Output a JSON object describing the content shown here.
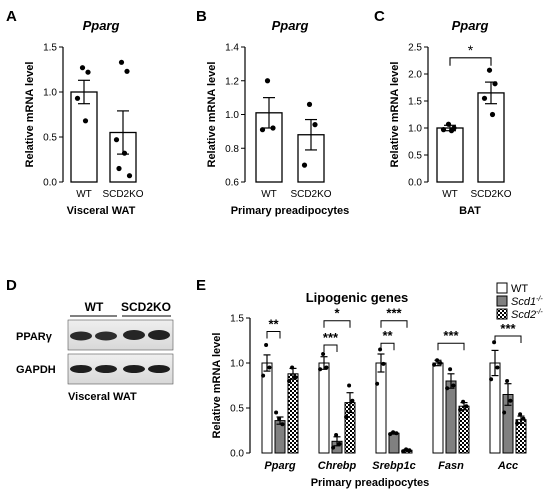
{
  "panel_letters": [
    "A",
    "B",
    "C",
    "D",
    "E"
  ],
  "chart_data": [
    {
      "panel": "A",
      "type": "bar",
      "title": "Pparg",
      "ylabel": "Relative mRNA level",
      "xlabel": "Visceral WAT",
      "ylim": [
        0,
        1.5
      ],
      "yticks": [
        0.0,
        0.5,
        1.0,
        1.5
      ],
      "ytick_labels": [
        "0.0",
        "0.5",
        "1.0",
        "1.5"
      ],
      "categories": [
        "WT",
        "SCD2KO"
      ],
      "values": [
        1.0,
        0.55
      ],
      "errors": [
        0.13,
        0.24
      ],
      "points": [
        [
          1.27,
          1.22,
          0.93,
          0.68
        ],
        [
          1.33,
          1.23,
          0.47,
          0.32,
          0.15,
          0.07
        ]
      ],
      "significance": []
    },
    {
      "panel": "B",
      "type": "bar",
      "title": "Pparg",
      "ylabel": "Relative mRNA level",
      "xlabel": "Primary preadipocytes",
      "ylim": [
        0.6,
        1.4
      ],
      "yticks": [
        0.6,
        0.8,
        1.0,
        1.2,
        1.4
      ],
      "ytick_labels": [
        "0.6",
        "0.8",
        "1.0",
        "1.2",
        "1.4"
      ],
      "categories": [
        "WT",
        "SCD2KO"
      ],
      "values": [
        1.01,
        0.88
      ],
      "errors": [
        0.09,
        0.09
      ],
      "points": [
        [
          1.2,
          0.92,
          0.91
        ],
        [
          1.06,
          0.94,
          0.7
        ]
      ],
      "significance": []
    },
    {
      "panel": "C",
      "type": "bar",
      "title": "Pparg",
      "ylabel": "Relative mRNA level",
      "xlabel": "BAT",
      "ylim": [
        0,
        2.5
      ],
      "yticks": [
        0.0,
        0.5,
        1.0,
        1.5,
        2.0,
        2.5
      ],
      "ytick_labels": [
        "0.0",
        "0.5",
        "1.0",
        "1.5",
        "2.0",
        "2.5"
      ],
      "categories": [
        "WT",
        "SCD2KO"
      ],
      "values": [
        1.0,
        1.65
      ],
      "errors": [
        0.05,
        0.2
      ],
      "points": [
        [
          1.07,
          1.0,
          0.97,
          0.95
        ],
        [
          2.07,
          1.82,
          1.55,
          1.25
        ]
      ],
      "significance": [
        {
          "from": 0,
          "to": 1,
          "y": 2.3,
          "label": "*"
        }
      ]
    },
    {
      "panel": "E",
      "type": "bar",
      "title": "Lipogenic genes",
      "ylabel": "Relative mRNA level",
      "xlabel": "Primary preadipocytes",
      "ylim": [
        0,
        1.5
      ],
      "yticks": [
        0.0,
        0.5,
        1.0,
        1.5
      ],
      "ytick_labels": [
        "0.0",
        "0.5",
        "1.0",
        "1.5"
      ],
      "categories": [
        "Pparg",
        "Chrebp",
        "Srebp1c",
        "Fasn",
        "Acc"
      ],
      "series": [
        {
          "name": "WT",
          "values": [
            1.0,
            1.0,
            1.0,
            1.0,
            1.0
          ],
          "errors": [
            0.09,
            0.07,
            0.1,
            0.03,
            0.14
          ]
        },
        {
          "name": "Scd1",
          "values": [
            0.36,
            0.13,
            0.22,
            0.8,
            0.65
          ],
          "errors": [
            0.04,
            0.05,
            0.01,
            0.08,
            0.12
          ]
        },
        {
          "name": "Scd2",
          "values": [
            0.88,
            0.56,
            0.03,
            0.52,
            0.37
          ],
          "errors": [
            0.06,
            0.11,
            0.01,
            0.04,
            0.04
          ]
        }
      ],
      "points": [
        [
          [
            1.2,
            0.95,
            0.86
          ],
          [
            0.38,
            0.32,
            0.45
          ],
          [
            0.95,
            0.84,
            0.8
          ]
        ],
        [
          [
            1.1,
            0.95,
            0.93
          ],
          [
            0.2,
            0.1,
            0.06
          ],
          [
            0.75,
            0.58,
            0.4
          ]
        ],
        [
          [
            1.15,
            0.99,
            0.77
          ],
          [
            0.23,
            0.22,
            0.21
          ],
          [
            0.04,
            0.03,
            0.02
          ]
        ],
        [
          [
            1.03,
            1.0,
            0.98
          ],
          [
            0.93,
            0.75,
            0.72
          ],
          [
            0.57,
            0.52,
            0.48
          ]
        ],
        [
          [
            1.23,
            0.95,
            0.82
          ],
          [
            0.8,
            0.58,
            0.45
          ],
          [
            0.43,
            0.38,
            0.33
          ]
        ]
      ],
      "significance": [
        {
          "gene": 0,
          "from": 0,
          "to": 1,
          "y": 1.35,
          "label": "**"
        },
        {
          "gene": 1,
          "from": 0,
          "to": 1,
          "y": 1.2,
          "label": "***"
        },
        {
          "gene": 1,
          "from": 0,
          "to": 2,
          "y": 1.47,
          "label": "*"
        },
        {
          "gene": 2,
          "from": 0,
          "to": 1,
          "y": 1.22,
          "label": "**"
        },
        {
          "gene": 2,
          "from": 0,
          "to": 2,
          "y": 1.47,
          "label": "***"
        },
        {
          "gene": 3,
          "from": 0,
          "to": 2,
          "y": 1.22,
          "label": "***"
        },
        {
          "gene": 4,
          "from": 0,
          "to": 2,
          "y": 1.3,
          "label": "***"
        }
      ],
      "legend": {
        "placement": "top-right",
        "entries": [
          {
            "series": 0,
            "label": "WT",
            "superscript": ""
          },
          {
            "series": 1,
            "label": "Scd1",
            "superscript": "-/-"
          },
          {
            "series": 2,
            "label": "Scd2",
            "superscript": "-/-"
          }
        ]
      }
    }
  ],
  "western_blot": {
    "group_labels": [
      "WT",
      "SCD2KO"
    ],
    "row_labels": [
      "PPARγ",
      "GAPDH"
    ],
    "caption": "Visceral WAT"
  }
}
